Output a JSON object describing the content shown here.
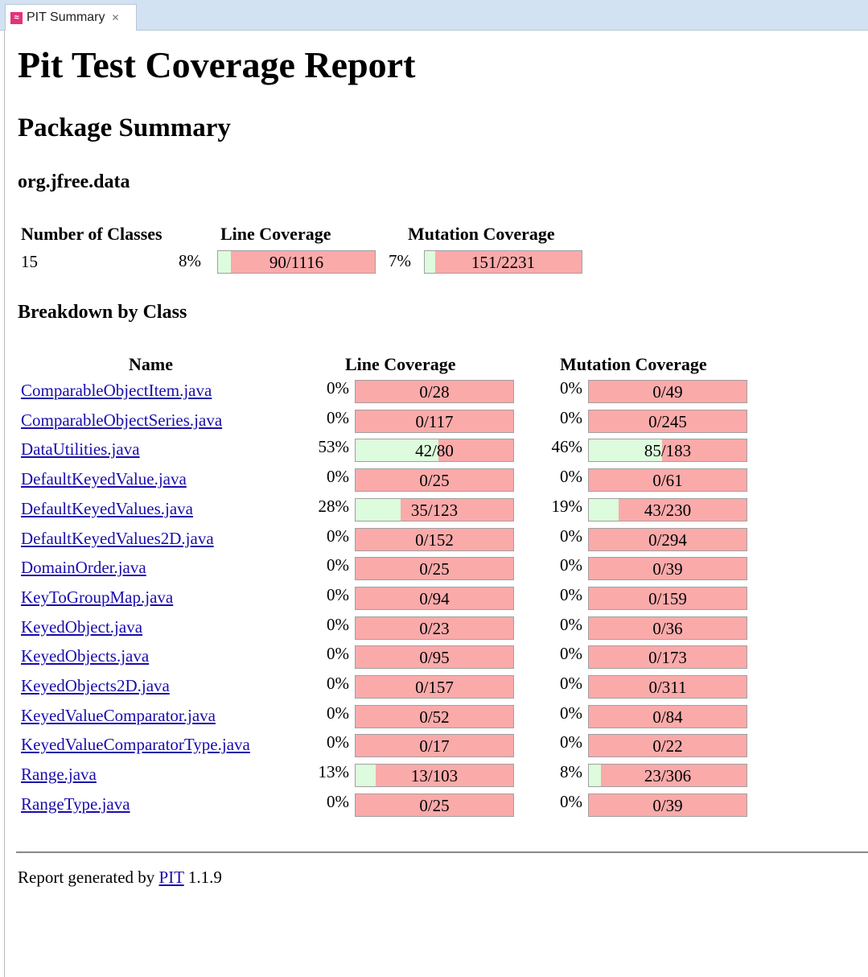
{
  "tab": {
    "title": "PIT Summary",
    "icon": "pit-icon",
    "close_icon": "close-icon"
  },
  "report": {
    "title": "Pit Test Coverage Report",
    "package_heading": "Package Summary",
    "package_name": "org.jfree.data",
    "summary_headers": {
      "classes": "Number of Classes",
      "line": "Line Coverage",
      "mutation": "Mutation Coverage"
    },
    "summary": {
      "classes": "15",
      "line_pct": "8%",
      "line_text": "90/1116",
      "line_ratio": 0.0806,
      "mut_pct": "7%",
      "mut_text": "151/2231",
      "mut_ratio": 0.0677
    },
    "breakdown_heading": "Breakdown by Class",
    "table_headers": {
      "name": "Name",
      "line": "Line Coverage",
      "mutation": "Mutation Coverage"
    },
    "rows": [
      {
        "name": "ComparableObjectItem.java",
        "line_pct": "0%",
        "line_text": "0/28",
        "line_ratio": 0,
        "mut_pct": "0%",
        "mut_text": "0/49",
        "mut_ratio": 0
      },
      {
        "name": "ComparableObjectSeries.java",
        "line_pct": "0%",
        "line_text": "0/117",
        "line_ratio": 0,
        "mut_pct": "0%",
        "mut_text": "0/245",
        "mut_ratio": 0
      },
      {
        "name": "DataUtilities.java",
        "line_pct": "53%",
        "line_text": "42/80",
        "line_ratio": 0.525,
        "mut_pct": "46%",
        "mut_text": "85/183",
        "mut_ratio": 0.4645
      },
      {
        "name": "DefaultKeyedValue.java",
        "line_pct": "0%",
        "line_text": "0/25",
        "line_ratio": 0,
        "mut_pct": "0%",
        "mut_text": "0/61",
        "mut_ratio": 0
      },
      {
        "name": "DefaultKeyedValues.java",
        "line_pct": "28%",
        "line_text": "35/123",
        "line_ratio": 0.2846,
        "mut_pct": "19%",
        "mut_text": "43/230",
        "mut_ratio": 0.187
      },
      {
        "name": "DefaultKeyedValues2D.java",
        "line_pct": "0%",
        "line_text": "0/152",
        "line_ratio": 0,
        "mut_pct": "0%",
        "mut_text": "0/294",
        "mut_ratio": 0
      },
      {
        "name": "DomainOrder.java",
        "line_pct": "0%",
        "line_text": "0/25",
        "line_ratio": 0,
        "mut_pct": "0%",
        "mut_text": "0/39",
        "mut_ratio": 0
      },
      {
        "name": "KeyToGroupMap.java",
        "line_pct": "0%",
        "line_text": "0/94",
        "line_ratio": 0,
        "mut_pct": "0%",
        "mut_text": "0/159",
        "mut_ratio": 0
      },
      {
        "name": "KeyedObject.java",
        "line_pct": "0%",
        "line_text": "0/23",
        "line_ratio": 0,
        "mut_pct": "0%",
        "mut_text": "0/36",
        "mut_ratio": 0
      },
      {
        "name": "KeyedObjects.java",
        "line_pct": "0%",
        "line_text": "0/95",
        "line_ratio": 0,
        "mut_pct": "0%",
        "mut_text": "0/173",
        "mut_ratio": 0
      },
      {
        "name": "KeyedObjects2D.java",
        "line_pct": "0%",
        "line_text": "0/157",
        "line_ratio": 0,
        "mut_pct": "0%",
        "mut_text": "0/311",
        "mut_ratio": 0
      },
      {
        "name": "KeyedValueComparator.java",
        "line_pct": "0%",
        "line_text": "0/52",
        "line_ratio": 0,
        "mut_pct": "0%",
        "mut_text": "0/84",
        "mut_ratio": 0
      },
      {
        "name": "KeyedValueComparatorType.java",
        "line_pct": "0%",
        "line_text": "0/17",
        "line_ratio": 0,
        "mut_pct": "0%",
        "mut_text": "0/22",
        "mut_ratio": 0
      },
      {
        "name": "Range.java",
        "line_pct": "13%",
        "line_text": "13/103",
        "line_ratio": 0.1262,
        "mut_pct": "8%",
        "mut_text": "23/306",
        "mut_ratio": 0.0752
      },
      {
        "name": "RangeType.java",
        "line_pct": "0%",
        "line_text": "0/25",
        "line_ratio": 0,
        "mut_pct": "0%",
        "mut_text": "0/39",
        "mut_ratio": 0
      }
    ],
    "footer": {
      "prefix": "Report generated by",
      "link": "PIT",
      "version": "1.1.9"
    }
  },
  "colors": {
    "covered": "#ddfbdd",
    "uncovered": "#fbaaaa",
    "link": "#1a0dab"
  }
}
